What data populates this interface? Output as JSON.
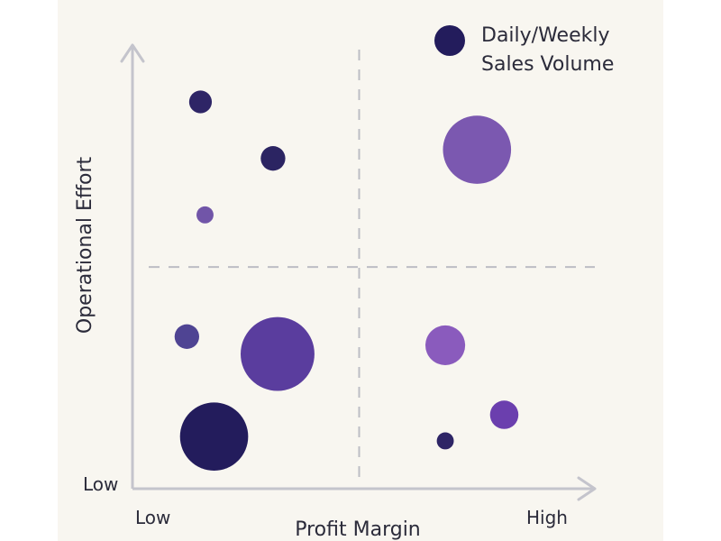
{
  "chart_data": {
    "type": "scatter",
    "title": "",
    "xlabel": "Profit Margin",
    "ylabel": "Operational Effort",
    "xlim": [
      0,
      10
    ],
    "ylim": [
      0,
      10
    ],
    "x_tick_labels": [
      "Low",
      "High"
    ],
    "y_tick_labels": [
      "Low"
    ],
    "legend": {
      "label": "Daily/Weekly Sales Volume",
      "label_lines": [
        "Daily/Weekly",
        "Sales Volume"
      ],
      "color": "#231c5c",
      "placement": "top-right"
    },
    "quadrant_dividers": {
      "x": 5.0,
      "y": 5.1
    },
    "size_encoding": "Daily/Weekly Sales Volume",
    "points": [
      {
        "x": 1.5,
        "y": 8.9,
        "size": 1.2,
        "color": "#2e2566"
      },
      {
        "x": 3.1,
        "y": 7.6,
        "size": 1.3,
        "color": "#2b2462"
      },
      {
        "x": 1.6,
        "y": 6.3,
        "size": 0.9,
        "color": "#7155a8"
      },
      {
        "x": 7.6,
        "y": 7.8,
        "size": 3.6,
        "color": "#7b58b0"
      },
      {
        "x": 1.2,
        "y": 3.5,
        "size": 1.3,
        "color": "#4f4493"
      },
      {
        "x": 3.2,
        "y": 3.1,
        "size": 3.9,
        "color": "#5a3d9e"
      },
      {
        "x": 1.8,
        "y": 1.2,
        "size": 3.6,
        "color": "#231c5c"
      },
      {
        "x": 6.9,
        "y": 3.3,
        "size": 2.1,
        "color": "#8a5bbd"
      },
      {
        "x": 8.2,
        "y": 1.7,
        "size": 1.5,
        "color": "#6b3fae"
      },
      {
        "x": 6.9,
        "y": 1.1,
        "size": 0.9,
        "color": "#2e2566"
      }
    ]
  },
  "colors": {
    "background": "#f8f6f0",
    "axis": "#c4c4cc",
    "divider": "#bdbdc4",
    "text": "#2b2b3a"
  }
}
